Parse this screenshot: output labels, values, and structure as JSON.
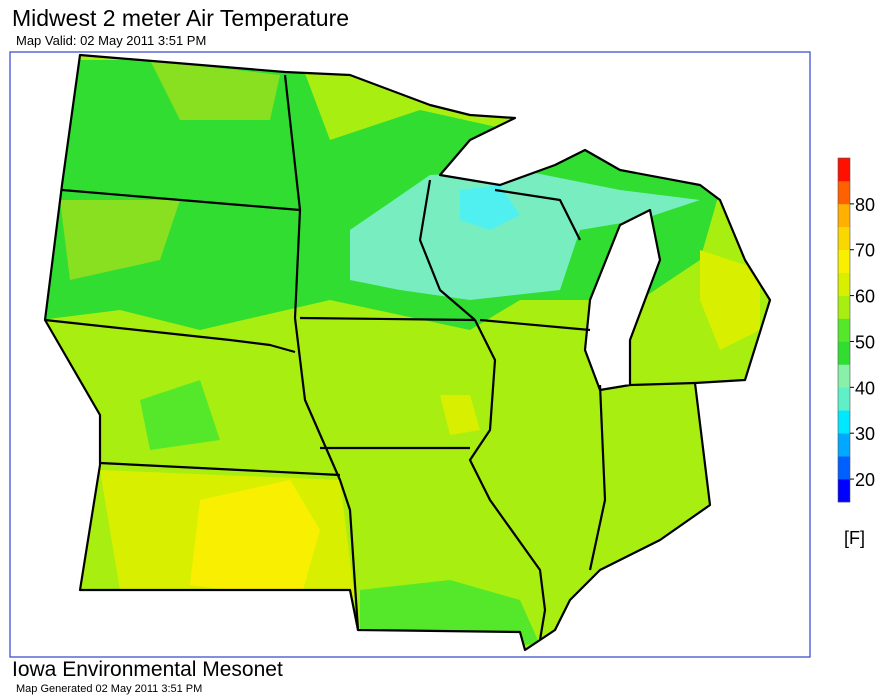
{
  "header": {
    "title": "Midwest 2 meter Air Temperature",
    "subtitle": "Map Valid: 02 May 2011 3:51 PM"
  },
  "colorbar": {
    "range": [
      15,
      90
    ],
    "ticks": [
      20,
      30,
      40,
      50,
      60,
      70,
      80
    ],
    "unit": "[F]",
    "colors": [
      "#0000ff",
      "#0060ff",
      "#00a8ff",
      "#00e8ff",
      "#60f0c8",
      "#88f0a8",
      "#30dd30",
      "#55e82a",
      "#a8ee10",
      "#d8f000",
      "#f8f000",
      "#f8d800",
      "#ffb000",
      "#ff6000",
      "#ff1000"
    ]
  },
  "footer": {
    "org": "Iowa Environmental Mesonet",
    "generated": "Map Generated 02 May 2011 3:51 PM"
  }
}
